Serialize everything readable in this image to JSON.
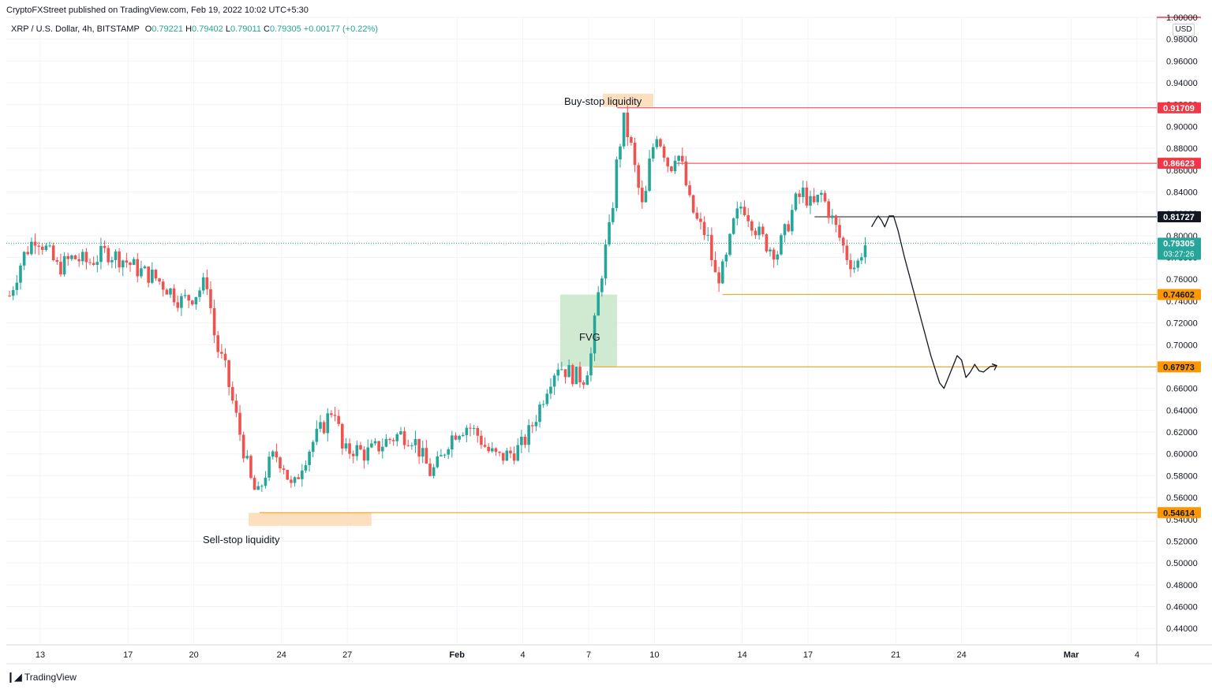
{
  "header": {
    "published": "CryptoFXStreet published on TradingView.com, Feb 19, 2022 10:02 UTC+5:30",
    "symbol": "XRP / U.S. Dollar, 4h, BITSTAMP",
    "open_label": "O",
    "open": "0.79221",
    "high_label": "H",
    "high": "0.79402",
    "low_label": "L",
    "low": "0.79011",
    "close_label": "C",
    "close": "0.79305",
    "change": "+0.00177 (+0.22%)"
  },
  "currency": "USD",
  "brand": {
    "name": "TradingView",
    "icon": "tradingview-logo-icon"
  },
  "annotations": {
    "buy_stop": "Buy-stop liquidity",
    "sell_stop": "Sell-stop liquidity",
    "fvg": "FVG"
  },
  "colors": {
    "up": "#26a69a",
    "down": "#ef5350",
    "red_level": "#f23645",
    "orange_level": "#ff9800",
    "black_level": "#131722",
    "liquidity_zone": "#fcd9b4",
    "fvg_zone": "#c8e6c9",
    "grid": "#f0f3fa"
  },
  "chart_data": {
    "type": "candlestick",
    "ylim": [
      0.425,
      1.0
    ],
    "y_ticks": [
      "0.44000",
      "0.46000",
      "0.48000",
      "0.50000",
      "0.52000",
      "0.54000",
      "0.56000",
      "0.58000",
      "0.60000",
      "0.62000",
      "0.64000",
      "0.66000",
      "0.68000",
      "0.70000",
      "0.72000",
      "0.74000",
      "0.76000",
      "0.78000",
      "0.80000",
      "0.82000",
      "0.84000",
      "0.86000",
      "0.88000",
      "0.90000",
      "0.92000",
      "0.94000",
      "0.96000",
      "0.98000",
      "1.00000"
    ],
    "x_ticks": [
      {
        "label": "13",
        "day": 13
      },
      {
        "label": "17",
        "day": 17
      },
      {
        "label": "20",
        "day": 20
      },
      {
        "label": "24",
        "day": 24
      },
      {
        "label": "27",
        "day": 27
      },
      {
        "label": "Feb",
        "day": 32
      },
      {
        "label": "4",
        "day": 35
      },
      {
        "label": "7",
        "day": 38
      },
      {
        "label": "10",
        "day": 41
      },
      {
        "label": "14",
        "day": 45
      },
      {
        "label": "17",
        "day": 48
      },
      {
        "label": "21",
        "day": 52
      },
      {
        "label": "24",
        "day": 55
      },
      {
        "label": "Mar",
        "day": 60
      },
      {
        "label": "4",
        "day": 63
      }
    ],
    "levels": [
      {
        "value": 0.91709,
        "label": "0.91709",
        "color": "red"
      },
      {
        "value": 0.86623,
        "label": "0.86623",
        "color": "red"
      },
      {
        "value": 0.81727,
        "label": "0.81727",
        "color": "black"
      },
      {
        "value": 0.74602,
        "label": "0.74602",
        "color": "orange"
      },
      {
        "value": 0.67973,
        "label": "0.67973",
        "color": "orange"
      },
      {
        "value": 0.54614,
        "label": "0.54614",
        "color": "orange"
      }
    ],
    "last_price": {
      "value": 0.79305,
      "label": "0.79305",
      "countdown": "03:27:26"
    },
    "path": [
      [
        11.6,
        0.745
      ],
      [
        12.2,
        0.78
      ],
      [
        12.8,
        0.8
      ],
      [
        13.2,
        0.79
      ],
      [
        13.8,
        0.77
      ],
      [
        14.5,
        0.78
      ],
      [
        15.2,
        0.775
      ],
      [
        16.0,
        0.785
      ],
      [
        16.8,
        0.778
      ],
      [
        17.5,
        0.768
      ],
      [
        18.2,
        0.762
      ],
      [
        18.8,
        0.752
      ],
      [
        19.4,
        0.74
      ],
      [
        20.0,
        0.745
      ],
      [
        20.6,
        0.758
      ],
      [
        21.0,
        0.7
      ],
      [
        21.4,
        0.68
      ],
      [
        21.8,
        0.645
      ],
      [
        22.2,
        0.61
      ],
      [
        22.6,
        0.575
      ],
      [
        22.9,
        0.56
      ],
      [
        23.3,
        0.585
      ],
      [
        23.7,
        0.6
      ],
      [
        24.1,
        0.59
      ],
      [
        24.5,
        0.565
      ],
      [
        24.9,
        0.59
      ],
      [
        25.4,
        0.61
      ],
      [
        25.9,
        0.625
      ],
      [
        26.4,
        0.645
      ],
      [
        26.8,
        0.6
      ],
      [
        27.3,
        0.605
      ],
      [
        27.8,
        0.6
      ],
      [
        28.3,
        0.605
      ],
      [
        28.8,
        0.612
      ],
      [
        29.4,
        0.618
      ],
      [
        30.0,
        0.615
      ],
      [
        30.4,
        0.598
      ],
      [
        30.8,
        0.582
      ],
      [
        31.2,
        0.592
      ],
      [
        31.6,
        0.612
      ],
      [
        32.0,
        0.622
      ],
      [
        32.5,
        0.626
      ],
      [
        33.0,
        0.616
      ],
      [
        33.4,
        0.603
      ],
      [
        33.9,
        0.596
      ],
      [
        34.4,
        0.6
      ],
      [
        34.9,
        0.606
      ],
      [
        35.3,
        0.62
      ],
      [
        35.8,
        0.645
      ],
      [
        36.2,
        0.668
      ],
      [
        36.6,
        0.682
      ],
      [
        37.0,
        0.676
      ],
      [
        37.4,
        0.671
      ],
      [
        37.8,
        0.67
      ],
      [
        38.1,
        0.69
      ],
      [
        38.4,
        0.74
      ],
      [
        38.7,
        0.78
      ],
      [
        39.0,
        0.81
      ],
      [
        39.3,
        0.87
      ],
      [
        39.6,
        0.905
      ],
      [
        39.9,
        0.885
      ],
      [
        40.2,
        0.85
      ],
      [
        40.5,
        0.82
      ],
      [
        40.8,
        0.87
      ],
      [
        41.1,
        0.895
      ],
      [
        41.4,
        0.88
      ],
      [
        41.7,
        0.86
      ],
      [
        42.0,
        0.88
      ],
      [
        42.3,
        0.86
      ],
      [
        42.6,
        0.83
      ],
      [
        43.0,
        0.81
      ],
      [
        43.4,
        0.8
      ],
      [
        43.8,
        0.76
      ],
      [
        44.2,
        0.77
      ],
      [
        44.6,
        0.81
      ],
      [
        45.0,
        0.83
      ],
      [
        45.4,
        0.815
      ],
      [
        45.8,
        0.8
      ],
      [
        46.2,
        0.79
      ],
      [
        46.6,
        0.785
      ],
      [
        47.0,
        0.805
      ],
      [
        47.4,
        0.83
      ],
      [
        47.8,
        0.84
      ],
      [
        48.2,
        0.825
      ],
      [
        48.6,
        0.838
      ],
      [
        49.0,
        0.82
      ],
      [
        49.4,
        0.8
      ],
      [
        49.8,
        0.78
      ],
      [
        50.2,
        0.77
      ],
      [
        50.5,
        0.79
      ],
      [
        50.7,
        0.793
      ]
    ],
    "forecast": [
      [
        50.9,
        0.808
      ],
      [
        51.1,
        0.815
      ],
      [
        51.2,
        0.818
      ],
      [
        51.35,
        0.814
      ],
      [
        51.5,
        0.808
      ],
      [
        51.7,
        0.818
      ],
      [
        51.9,
        0.818
      ],
      [
        52.1,
        0.805
      ],
      [
        52.4,
        0.78
      ],
      [
        52.8,
        0.75
      ],
      [
        53.2,
        0.72
      ],
      [
        53.6,
        0.69
      ],
      [
        54.0,
        0.665
      ],
      [
        54.2,
        0.66
      ],
      [
        54.4,
        0.67
      ],
      [
        54.6,
        0.68
      ],
      [
        54.8,
        0.69
      ],
      [
        55.0,
        0.686
      ],
      [
        55.2,
        0.67
      ],
      [
        55.4,
        0.675
      ],
      [
        55.6,
        0.682
      ],
      [
        55.8,
        0.676
      ],
      [
        56.0,
        0.675
      ],
      [
        56.3,
        0.68
      ],
      [
        56.6,
        0.681
      ]
    ]
  }
}
